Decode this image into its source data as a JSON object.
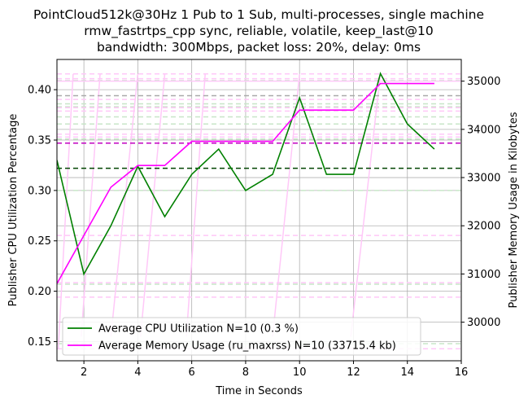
{
  "chart_data": {
    "type": "line",
    "title_lines": [
      "PointCloud512k@30Hz 1 Pub to 1 Sub, multi-processes, single machine",
      "rmw_fastrtps_cpp sync, reliable, volatile, keep_last@10",
      "bandwidth: 300Mbps, packet loss: 20%, delay: 0ms"
    ],
    "xlabel": "Time in Seconds",
    "ylabel_left": "Publisher CPU Utilization Percentage",
    "ylabel_right": "Publisher Memory Usage in Kilobytes",
    "xlim": [
      1,
      16
    ],
    "ylim_left": [
      0.131,
      0.43
    ],
    "ylim_right": [
      29200,
      35450
    ],
    "x_ticks": [
      2,
      4,
      6,
      8,
      10,
      12,
      14,
      16
    ],
    "y_ticks_left": [
      0.15,
      0.2,
      0.25,
      0.3,
      0.35,
      0.4
    ],
    "y_tick_labels_left": [
      "0.15",
      "0.20",
      "0.25",
      "0.30",
      "0.35",
      "0.40"
    ],
    "y_ticks_right": [
      30000,
      31000,
      32000,
      33000,
      34000,
      35000
    ],
    "grid": true,
    "legend_position": "lower-left",
    "series": [
      {
        "name": "Average CPU Utilization N=10 (0.3 %)",
        "axis": "left",
        "color": "#008000",
        "x": [
          1,
          2,
          3,
          4,
          5,
          6,
          7,
          8,
          9,
          10,
          11,
          12,
          13,
          14,
          15
        ],
        "values": [
          0.33,
          0.217,
          0.265,
          0.324,
          0.274,
          0.316,
          0.341,
          0.3,
          0.316,
          0.392,
          0.316,
          0.316,
          0.416,
          0.366,
          0.341
        ]
      },
      {
        "name": "Average Memory Usage (ru_maxrss) N=10 (33715.4 kb)",
        "axis": "right",
        "color": "#ff00ff",
        "x": [
          1,
          2,
          3,
          4,
          5,
          6,
          7,
          8,
          9,
          10,
          11,
          12,
          13,
          14,
          15
        ],
        "values": [
          30800,
          31800,
          32800,
          33250,
          33250,
          33750,
          33750,
          33750,
          33750,
          34400,
          34400,
          34400,
          34950,
          34950,
          34950
        ]
      }
    ],
    "mean_lines": [
      {
        "axis": "left",
        "value": 0.322,
        "color": "#004400",
        "label": "mean CPU"
      },
      {
        "axis": "right",
        "value": 33715.4,
        "color": "#c000c0",
        "label": "mean memory"
      }
    ],
    "faint_cpu_levels": [
      0.409,
      0.386,
      0.383,
      0.373,
      0.366,
      0.351,
      0.3,
      0.207,
      0.148
    ],
    "faint_mem_levels": [
      35150,
      35050,
      34620,
      34450,
      34380,
      33900,
      33840,
      31800,
      30820,
      30520,
      29450
    ],
    "faint_mem_ramps": [
      {
        "x0": 1.05,
        "x1": 1.6,
        "y0": 29450,
        "y1": 35150
      },
      {
        "x0": 1.9,
        "x1": 2.6,
        "y0": 29700,
        "y1": 35150
      },
      {
        "x0": 3.0,
        "x1": 4.0,
        "y0": 29700,
        "y1": 35150
      },
      {
        "x0": 4.1,
        "x1": 5.0,
        "y0": 29700,
        "y1": 35150
      },
      {
        "x0": 5.8,
        "x1": 6.5,
        "y0": 29700,
        "y1": 35150
      },
      {
        "x0": 9.0,
        "x1": 10.0,
        "y0": 29700,
        "y1": 35150
      },
      {
        "x0": 11.9,
        "x1": 13.0,
        "y0": 29700,
        "y1": 35150
      }
    ],
    "faint_colors": {
      "cpu": "#c8e6c8",
      "mem": "#ffc8f8",
      "mean": "#aaaaaa"
    }
  }
}
